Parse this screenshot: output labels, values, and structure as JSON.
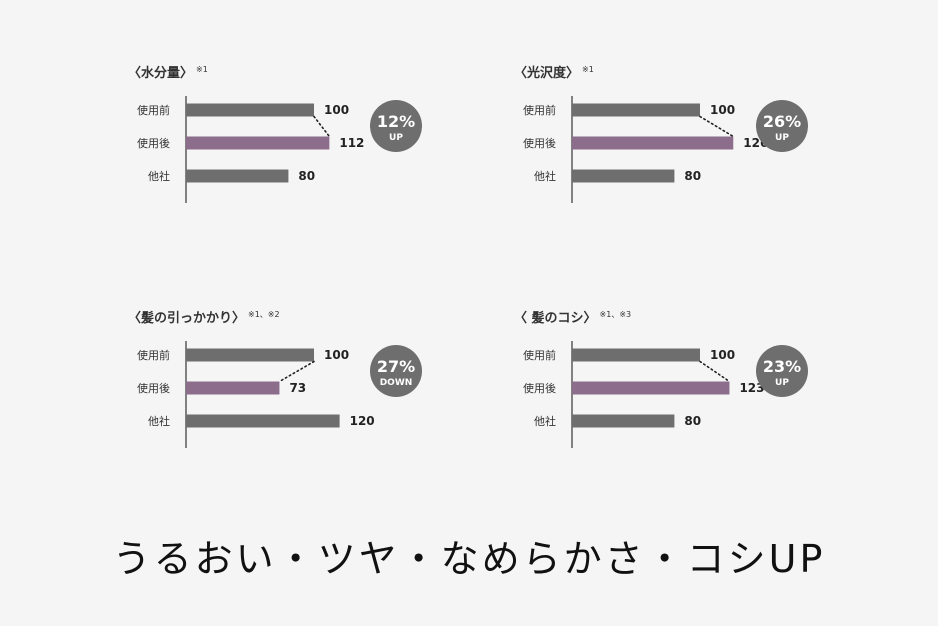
{
  "colors": {
    "bar": "#6e6e6e",
    "after_bar": "#8c6d8b",
    "badge": "#6e6e6e",
    "badge_text": "#ffffff"
  },
  "heading": "うるおい・ツヤ・なめらかさ・コシUP",
  "chart_data": [
    {
      "type": "bar",
      "title": "〈水分量〉",
      "note": "※1",
      "categories": [
        "使用前",
        "使用後",
        "他社"
      ],
      "values": [
        100,
        112,
        80
      ],
      "badge": {
        "value": "12%",
        "label": "UP"
      }
    },
    {
      "type": "bar",
      "title": "〈光沢度〉",
      "note": "※1",
      "categories": [
        "使用前",
        "使用後",
        "他社"
      ],
      "values": [
        100,
        126,
        80
      ],
      "badge": {
        "value": "26%",
        "label": "UP"
      }
    },
    {
      "type": "bar",
      "title": "〈髪の引っかかり〉",
      "note": "※1、※2",
      "categories": [
        "使用前",
        "使用後",
        "他社"
      ],
      "values": [
        100,
        73,
        120
      ],
      "badge": {
        "value": "27%",
        "label": "DOWN"
      }
    },
    {
      "type": "bar",
      "title": "〈 髪のコシ〉",
      "note": "※1、※3",
      "categories": [
        "使用前",
        "使用後",
        "他社"
      ],
      "values": [
        100,
        123,
        80
      ],
      "badge": {
        "value": "23%",
        "label": "UP"
      }
    }
  ]
}
